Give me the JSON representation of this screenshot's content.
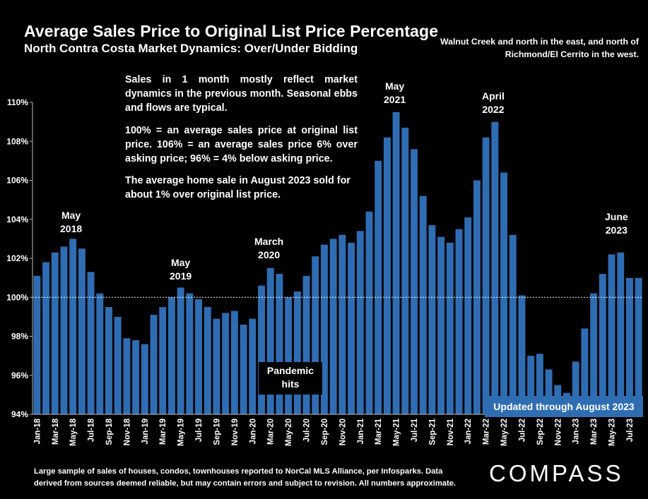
{
  "title": "Average Sales Price to Original List Price Percentage",
  "subtitle": "North Contra Costa Market Dynamics: Over/Under Bidding",
  "region_note": "Walnut Creek and north in the east, and north of Richmond/El Cerrito in the west.",
  "notes": [
    "Sales in 1 month mostly reflect market dynamics in the previous month. Seasonal ebbs and flows are typical.",
    "100% = an average sales price at original list price. 106% = an average sales price 6% over asking price; 96% = 4% below asking price.",
    "The average home sale in August 2023 sold for about 1% over original list price."
  ],
  "annotations": [
    {
      "line1": "May",
      "line2": "2018"
    },
    {
      "line1": "May",
      "line2": "2019"
    },
    {
      "line1": "March",
      "line2": "2020"
    },
    {
      "line1": "May",
      "line2": "2021"
    },
    {
      "line1": "April",
      "line2": "2022"
    },
    {
      "line1": "June",
      "line2": "2023"
    }
  ],
  "pandemic": {
    "line1": "Pandemic",
    "line2": "hits"
  },
  "updated": "Updated through August 2023",
  "footer": "Large sample of sales of houses, condos, townhouses reported to NorCal MLS Alliance, per Infosparks. Data derived from sources deemed reliable, but may contain errors and subject to revision. All numbers approximate.",
  "logo": "COMPASS",
  "colors": {
    "bar": "#2f6db3",
    "background": "#000000",
    "text": "#ffffff"
  },
  "chart_data": {
    "type": "bar",
    "title": "Average Sales Price to Original List Price Percentage",
    "ylim": [
      94,
      110
    ],
    "yticks": [
      "94%",
      "96%",
      "98%",
      "100%",
      "102%",
      "104%",
      "106%",
      "108%",
      "110%"
    ],
    "reference_line": 100,
    "grid": false,
    "categories": [
      "Jan-18",
      "Feb-18",
      "Mar-18",
      "Apr-18",
      "May-18",
      "Jun-18",
      "Jul-18",
      "Aug-18",
      "Sep-18",
      "Oct-18",
      "Nov-18",
      "Dec-18",
      "Jan-19",
      "Feb-19",
      "Mar-19",
      "Apr-19",
      "May-19",
      "Jun-19",
      "Jul-19",
      "Aug-19",
      "Sep-19",
      "Oct-19",
      "Nov-19",
      "Dec-19",
      "Jan-20",
      "Feb-20",
      "Mar-20",
      "Apr-20",
      "May-20",
      "Jun-20",
      "Jul-20",
      "Aug-20",
      "Sep-20",
      "Oct-20",
      "Nov-20",
      "Dec-20",
      "Jan-21",
      "Feb-21",
      "Mar-21",
      "Apr-21",
      "May-21",
      "Jun-21",
      "Jul-21",
      "Aug-21",
      "Sep-21",
      "Oct-21",
      "Nov-21",
      "Dec-21",
      "Jan-22",
      "Feb-22",
      "Mar-22",
      "Apr-22",
      "May-22",
      "Jun-22",
      "Jul-22",
      "Aug-22",
      "Sep-22",
      "Oct-22",
      "Nov-22",
      "Dec-22",
      "Jan-23",
      "Feb-23",
      "Mar-23",
      "Apr-23",
      "May-23",
      "Jun-23",
      "Jul-23",
      "Aug-23"
    ],
    "tick_labels_shown": [
      "Jan-18",
      "Mar-18",
      "May-18",
      "Jul-18",
      "Sep-18",
      "Nov-18",
      "Jan-19",
      "Mar-19",
      "May-19",
      "Jul-19",
      "Sep-19",
      "Nov-19",
      "Jan-20",
      "Mar-20",
      "May-20",
      "Jul-20",
      "Sep-20",
      "Nov-20",
      "Jan-21",
      "Mar-21",
      "May-21",
      "Jul-21",
      "Sep-21",
      "Nov-21",
      "Jan-22",
      "Mar-22",
      "May-22",
      "Jul-22",
      "Sep-22",
      "Nov-22",
      "Jan-23",
      "Mar-23",
      "May-23",
      "Jul-23"
    ],
    "values": [
      101.1,
      101.8,
      102.3,
      102.6,
      103.0,
      102.5,
      101.3,
      100.2,
      99.5,
      99.0,
      97.9,
      97.8,
      97.6,
      99.1,
      99.5,
      100.0,
      100.5,
      100.2,
      99.9,
      99.5,
      98.9,
      99.2,
      99.3,
      98.6,
      98.9,
      100.6,
      101.5,
      101.2,
      100.0,
      100.3,
      101.1,
      102.1,
      102.7,
      103.0,
      103.2,
      102.8,
      103.4,
      104.4,
      107.0,
      108.2,
      109.5,
      108.7,
      107.6,
      105.2,
      103.7,
      103.1,
      102.8,
      103.5,
      104.1,
      106.0,
      108.2,
      109.0,
      106.4,
      103.2,
      100.1,
      97.0,
      97.1,
      96.3,
      95.5,
      95.1,
      96.7,
      98.4,
      100.2,
      101.2,
      102.2,
      102.3,
      101.0,
      101.0
    ]
  }
}
